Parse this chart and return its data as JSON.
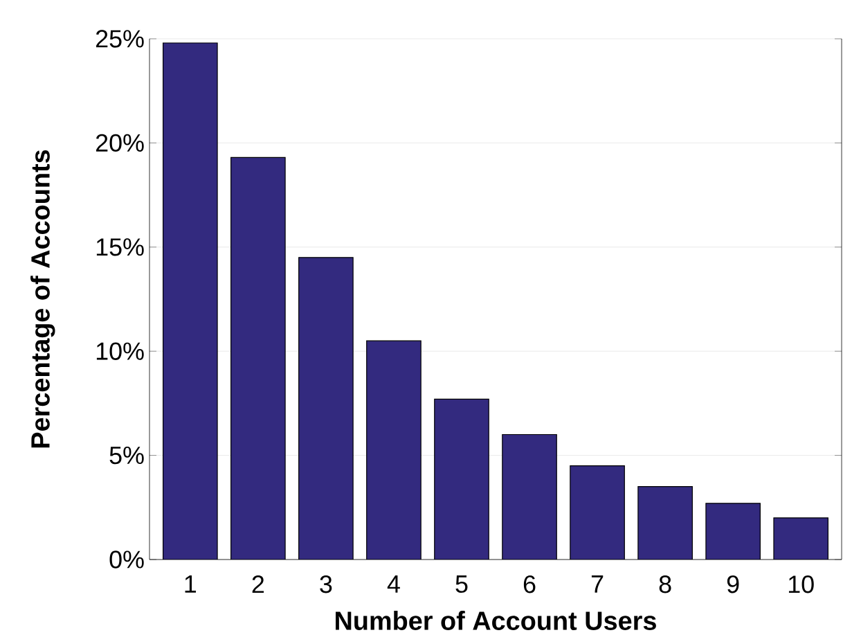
{
  "chart_data": {
    "type": "bar",
    "xlabel": "Number of Account Users",
    "ylabel": "Percentage of Accounts",
    "categories": [
      "1",
      "2",
      "3",
      "4",
      "5",
      "6",
      "7",
      "8",
      "9",
      "10"
    ],
    "values": [
      24.8,
      19.3,
      14.5,
      10.5,
      7.7,
      6.0,
      4.5,
      3.5,
      2.7,
      2.0
    ],
    "color": "#332a7f",
    "ylim": [
      0,
      25
    ],
    "yticks": [
      {
        "value": 0,
        "label": "0%"
      },
      {
        "value": 5,
        "label": "5%"
      },
      {
        "value": 10,
        "label": "10%"
      },
      {
        "value": 15,
        "label": "15%"
      },
      {
        "value": 20,
        "label": "20%"
      },
      {
        "value": 25,
        "label": "25%"
      }
    ],
    "grid": "y"
  }
}
